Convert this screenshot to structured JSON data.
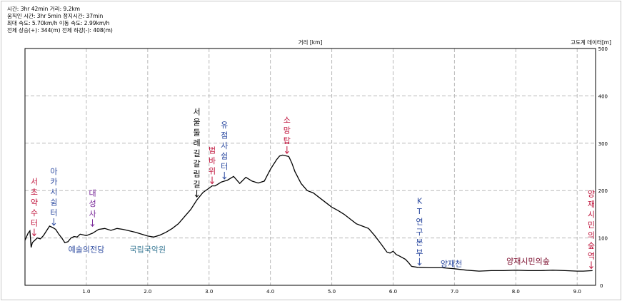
{
  "stats": [
    "시간: 3hr 42min  거리: 9.2km",
    "움직인 시간: 3hr 5min  정지시간: 37min",
    "최대 속도: 5.70km/h  이동 속도: 2.99km/h",
    "전체 상승(+): 344(m)  전체 하강(-): 408(m)"
  ],
  "colors": {
    "line": "#000000",
    "grid": "#b8b8b8",
    "red": "#c0143c",
    "blue": "#2c4aa0",
    "purple": "#7a2a9a",
    "teal": "#3a7a96",
    "black": "#000000",
    "darkred": "#7a0a2a"
  },
  "chart_data": {
    "type": "line",
    "xlabel": "거리 [km]",
    "ylabel": "고도계 데이터[m]",
    "xlim": [
      0,
      9.3
    ],
    "ylim": [
      0,
      500
    ],
    "xticks": [
      "1.0",
      "2.0",
      "3.0",
      "4.0",
      "5.0",
      "6.0",
      "7.0",
      "8.0",
      "9.0"
    ],
    "yticks": [
      "100",
      "200",
      "300",
      "400",
      "500"
    ],
    "yticks_extra": [
      "0"
    ],
    "x": [
      0,
      0.05,
      0.08,
      0.1,
      0.12,
      0.16,
      0.2,
      0.25,
      0.3,
      0.35,
      0.4,
      0.45,
      0.5,
      0.55,
      0.6,
      0.65,
      0.7,
      0.75,
      0.8,
      0.85,
      0.9,
      1.0,
      1.1,
      1.2,
      1.3,
      1.4,
      1.5,
      1.6,
      1.7,
      1.8,
      1.9,
      2.0,
      2.1,
      2.2,
      2.3,
      2.4,
      2.5,
      2.6,
      2.7,
      2.8,
      2.9,
      3.0,
      3.05,
      3.1,
      3.2,
      3.3,
      3.4,
      3.5,
      3.6,
      3.7,
      3.8,
      3.9,
      4.0,
      4.1,
      4.15,
      4.2,
      4.3,
      4.35,
      4.4,
      4.5,
      4.6,
      4.7,
      4.8,
      4.9,
      5.0,
      5.1,
      5.2,
      5.3,
      5.4,
      5.5,
      5.6,
      5.7,
      5.8,
      5.9,
      5.95,
      6.0,
      6.05,
      6.1,
      6.2,
      6.25,
      6.3,
      6.4,
      6.6,
      6.8,
      7.0,
      7.2,
      7.4,
      7.6,
      7.8,
      8.0,
      8.2,
      8.4,
      8.6,
      8.8,
      9.0,
      9.1,
      9.25
    ],
    "y": [
      95,
      110,
      115,
      80,
      90,
      95,
      100,
      98,
      105,
      115,
      125,
      122,
      118,
      108,
      100,
      90,
      92,
      100,
      103,
      102,
      108,
      105,
      110,
      118,
      120,
      116,
      120,
      118,
      115,
      112,
      108,
      104,
      102,
      106,
      112,
      120,
      130,
      145,
      160,
      180,
      196,
      205,
      210,
      210,
      218,
      222,
      230,
      215,
      228,
      220,
      216,
      220,
      245,
      265,
      273,
      275,
      272,
      258,
      240,
      215,
      200,
      195,
      185,
      175,
      165,
      158,
      150,
      140,
      130,
      125,
      120,
      105,
      88,
      70,
      68,
      72,
      65,
      62,
      55,
      48,
      40,
      38,
      37,
      37,
      35,
      32,
      30,
      31,
      31,
      32,
      31,
      31,
      32,
      31,
      30,
      30,
      31
    ],
    "annotations": [
      {
        "text": "서초약수터",
        "x": 0.15,
        "color": "red",
        "tip": 100
      },
      {
        "text": "아카시쉼터",
        "x": 0.47,
        "color": "blue",
        "tip": 122
      },
      {
        "text": "대성사",
        "x": 1.1,
        "color": "purple",
        "tip": 120
      },
      {
        "text": "서울둘레길갈림길",
        "x": 2.8,
        "color": "black",
        "tip": 182
      },
      {
        "text": "범바위",
        "x": 3.05,
        "color": "red",
        "tip": 210
      },
      {
        "text": "유점사쉼터",
        "x": 3.25,
        "color": "blue",
        "tip": 220
      },
      {
        "text": "소망탑",
        "x": 4.27,
        "color": "red",
        "tip": 274
      },
      {
        "text": "KT연구본부",
        "x": 6.43,
        "color": "blue",
        "tip": 38
      },
      {
        "text": "양재시민의숲역",
        "x": 9.23,
        "color": "red",
        "tip": 31
      }
    ],
    "places": [
      {
        "text": "예술의전당",
        "x": 1.0,
        "y": 70,
        "color": "blue"
      },
      {
        "text": "국립국악원",
        "x": 2.0,
        "y": 70,
        "color": "teal"
      },
      {
        "text": "양재천",
        "x": 6.95,
        "y": 40,
        "color": "blue"
      },
      {
        "text": "양재시민의숲",
        "x": 8.2,
        "y": 45,
        "color": "darkred"
      }
    ]
  }
}
